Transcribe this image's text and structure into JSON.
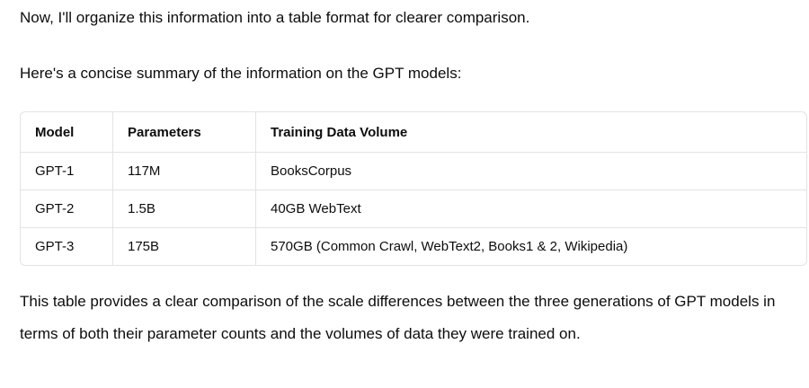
{
  "intro": "Now, I'll organize this information into a table format for clearer comparison.",
  "summary_heading": "Here's a concise summary of the information on the GPT models:",
  "table": {
    "headers": [
      "Model",
      "Parameters",
      "Training Data Volume"
    ],
    "rows": [
      [
        "GPT-1",
        "117M",
        "BooksCorpus"
      ],
      [
        "GPT-2",
        "1.5B",
        "40GB WebText"
      ],
      [
        "GPT-3",
        "175B",
        "570GB (Common Crawl, WebText2, Books1 & 2, Wikipedia)"
      ]
    ]
  },
  "conclusion": "This table provides a clear comparison of the scale differences between the three generations of GPT models in terms of both their parameter counts and the volumes of data they were trained on."
}
